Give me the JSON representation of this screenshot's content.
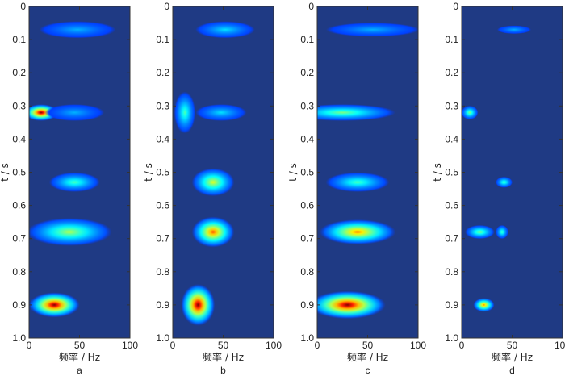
{
  "chart_data": [
    {
      "type": "heatmap",
      "panel_label": "a",
      "xlabel": "频率 / Hz",
      "ylabel": "t / s",
      "xlim": [
        0,
        100
      ],
      "ylim": [
        0,
        1.0
      ],
      "y_inverted": true,
      "xticks": [
        "0",
        "50",
        "100"
      ],
      "yticks": [
        "0",
        "0.1",
        "0.2",
        "0.3",
        "0.4",
        "0.5",
        "0.6",
        "0.7",
        "0.8",
        "0.9",
        "1.0"
      ],
      "colormap": "jet",
      "background_color": "#1f3a84",
      "energy_blobs": [
        {
          "t": 0.07,
          "f": 48,
          "t_spread": 0.012,
          "f_spread": 18,
          "intensity": 0.3
        },
        {
          "t": 0.32,
          "f": 12,
          "t_spread": 0.012,
          "f_spread": 8,
          "intensity": 1.0
        },
        {
          "t": 0.32,
          "f": 45,
          "t_spread": 0.012,
          "f_spread": 14,
          "intensity": 0.3
        },
        {
          "t": 0.53,
          "f": 45,
          "t_spread": 0.014,
          "f_spread": 12,
          "intensity": 0.45
        },
        {
          "t": 0.68,
          "f": 40,
          "t_spread": 0.02,
          "f_spread": 20,
          "intensity": 0.55
        },
        {
          "t": 0.9,
          "f": 25,
          "t_spread": 0.018,
          "f_spread": 12,
          "intensity": 1.0
        }
      ]
    },
    {
      "type": "heatmap",
      "panel_label": "b",
      "xlabel": "频率 / Hz",
      "ylabel": "t / s",
      "xlim": [
        0,
        100
      ],
      "ylim": [
        0,
        1.0
      ],
      "y_inverted": true,
      "xticks": [
        "0",
        "50",
        "100"
      ],
      "yticks": [
        "0",
        "0.1",
        "0.2",
        "0.3",
        "0.4",
        "0.5",
        "0.6",
        "0.7",
        "0.8",
        "0.9",
        "1.0"
      ],
      "colormap": "jet",
      "background_color": "#1f3a84",
      "energy_blobs": [
        {
          "t": 0.07,
          "f": 52,
          "t_spread": 0.012,
          "f_spread": 14,
          "intensity": 0.35
        },
        {
          "t": 0.32,
          "f": 12,
          "t_spread": 0.03,
          "f_spread": 5,
          "intensity": 0.45
        },
        {
          "t": 0.32,
          "f": 48,
          "t_spread": 0.012,
          "f_spread": 12,
          "intensity": 0.35
        },
        {
          "t": 0.53,
          "f": 40,
          "t_spread": 0.02,
          "f_spread": 10,
          "intensity": 0.6
        },
        {
          "t": 0.68,
          "f": 40,
          "t_spread": 0.022,
          "f_spread": 10,
          "intensity": 0.8
        },
        {
          "t": 0.9,
          "f": 25,
          "t_spread": 0.03,
          "f_spread": 8,
          "intensity": 1.0
        }
      ]
    },
    {
      "type": "heatmap",
      "panel_label": "c",
      "xlabel": "频率 / Hz",
      "ylabel": "t / s",
      "xlim": [
        0,
        100
      ],
      "ylim": [
        0,
        1.0
      ],
      "y_inverted": true,
      "xticks": [
        "0",
        "50",
        "100"
      ],
      "yticks": [
        "0",
        "0.1",
        "0.2",
        "0.3",
        "0.4",
        "0.5",
        "0.6",
        "0.7",
        "0.8",
        "0.9",
        "1.0"
      ],
      "colormap": "jet",
      "background_color": "#1f3a84",
      "energy_blobs": [
        {
          "t": 0.07,
          "f": 55,
          "t_spread": 0.01,
          "f_spread": 22,
          "intensity": 0.3
        },
        {
          "t": 0.32,
          "f": 25,
          "t_spread": 0.012,
          "f_spread": 25,
          "intensity": 0.5
        },
        {
          "t": 0.53,
          "f": 40,
          "t_spread": 0.014,
          "f_spread": 15,
          "intensity": 0.45
        },
        {
          "t": 0.68,
          "f": 40,
          "t_spread": 0.018,
          "f_spread": 18,
          "intensity": 0.75
        },
        {
          "t": 0.9,
          "f": 30,
          "t_spread": 0.02,
          "f_spread": 18,
          "intensity": 1.0
        }
      ]
    },
    {
      "type": "heatmap",
      "panel_label": "d",
      "xlabel": "频率 / Hz",
      "ylabel": "t / s",
      "xlim": [
        0,
        100
      ],
      "ylim": [
        0,
        1.0
      ],
      "y_inverted": true,
      "xticks": [
        "0",
        "50",
        "100"
      ],
      "yticks": [
        "0",
        "0.1",
        "0.2",
        "0.3",
        "0.4",
        "0.5",
        "0.6",
        "0.7",
        "0.8",
        "0.9",
        "1.0"
      ],
      "colormap": "jet",
      "background_color": "#1f3a84",
      "energy_blobs": [
        {
          "t": 0.07,
          "f": 52,
          "t_spread": 0.006,
          "f_spread": 8,
          "intensity": 0.3
        },
        {
          "t": 0.32,
          "f": 8,
          "t_spread": 0.01,
          "f_spread": 4,
          "intensity": 0.5
        },
        {
          "t": 0.53,
          "f": 42,
          "t_spread": 0.008,
          "f_spread": 4,
          "intensity": 0.45
        },
        {
          "t": 0.68,
          "f": 18,
          "t_spread": 0.01,
          "f_spread": 7,
          "intensity": 0.5
        },
        {
          "t": 0.68,
          "f": 40,
          "t_spread": 0.01,
          "f_spread": 3,
          "intensity": 0.45
        },
        {
          "t": 0.9,
          "f": 22,
          "t_spread": 0.01,
          "f_spread": 5,
          "intensity": 0.75
        }
      ]
    }
  ]
}
